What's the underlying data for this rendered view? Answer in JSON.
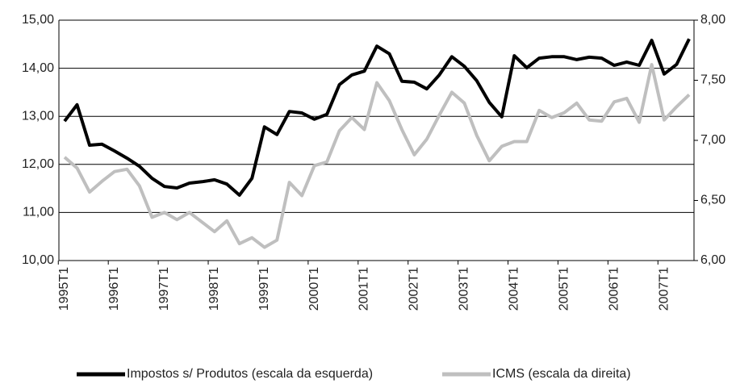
{
  "chart_data": {
    "type": "line",
    "categories": [
      "1995T1",
      null,
      null,
      null,
      "1996T1",
      null,
      null,
      null,
      "1997T1",
      null,
      null,
      null,
      "1998T1",
      null,
      null,
      null,
      "1999T1",
      null,
      null,
      null,
      "2000T1",
      null,
      null,
      null,
      "2001T1",
      null,
      null,
      null,
      "2002T1",
      null,
      null,
      null,
      "2003T1",
      null,
      null,
      null,
      "2004T1",
      null,
      null,
      null,
      "2005T1",
      null,
      null,
      null,
      "2006T1",
      null,
      null,
      null,
      "2007T1",
      null,
      null
    ],
    "series": [
      {
        "name": "Impostos s/ Produtos (escala da esquerda)",
        "color": "#000000",
        "axis": "y",
        "values": [
          12.9,
          13.24,
          12.4,
          12.42,
          12.28,
          12.13,
          11.96,
          11.71,
          11.54,
          11.51,
          11.61,
          11.64,
          11.68,
          11.59,
          11.36,
          11.71,
          12.78,
          12.62,
          13.1,
          13.07,
          12.94,
          13.04,
          13.66,
          13.86,
          13.94,
          14.46,
          14.3,
          13.73,
          13.71,
          13.57,
          13.86,
          14.24,
          14.04,
          13.74,
          13.29,
          12.99,
          14.26,
          14.01,
          14.21,
          14.24,
          14.24,
          14.18,
          14.23,
          14.21,
          14.06,
          14.13,
          14.06,
          14.58,
          13.88,
          14.08,
          14.61
        ]
      },
      {
        "name": "ICMS (escala da direita)",
        "color": "#bfbfbf",
        "axis": "y2",
        "values": [
          6.86,
          6.77,
          6.57,
          6.66,
          6.74,
          6.76,
          6.62,
          6.36,
          6.4,
          6.34,
          6.4,
          6.32,
          6.24,
          6.33,
          6.14,
          6.19,
          6.11,
          6.17,
          6.65,
          6.54,
          6.79,
          6.82,
          7.08,
          7.19,
          7.09,
          7.48,
          7.33,
          7.09,
          6.88,
          7.01,
          7.21,
          7.4,
          7.31,
          7.04,
          6.83,
          6.95,
          6.99,
          6.99,
          7.25,
          7.19,
          7.23,
          7.31,
          7.17,
          7.16,
          7.32,
          7.35,
          7.15,
          7.63,
          7.17,
          7.28,
          7.38
        ]
      }
    ],
    "ylim": [
      10,
      15
    ],
    "yticks": [
      {
        "value": 10,
        "label": "10,00"
      },
      {
        "value": 11,
        "label": "11,00"
      },
      {
        "value": 12,
        "label": "12,00"
      },
      {
        "value": 13,
        "label": "13,00"
      },
      {
        "value": 14,
        "label": "14,00"
      },
      {
        "value": 15,
        "label": "15,00"
      }
    ],
    "y2lim": [
      6,
      8
    ],
    "y2ticks": [
      {
        "value": 6,
        "label": "6,00"
      },
      {
        "value": 6.5,
        "label": "6,50"
      },
      {
        "value": 7,
        "label": "7,00"
      },
      {
        "value": 7.5,
        "label": "7,50"
      },
      {
        "value": 8,
        "label": "8,00"
      }
    ],
    "grid": true,
    "legend": "bottom"
  }
}
